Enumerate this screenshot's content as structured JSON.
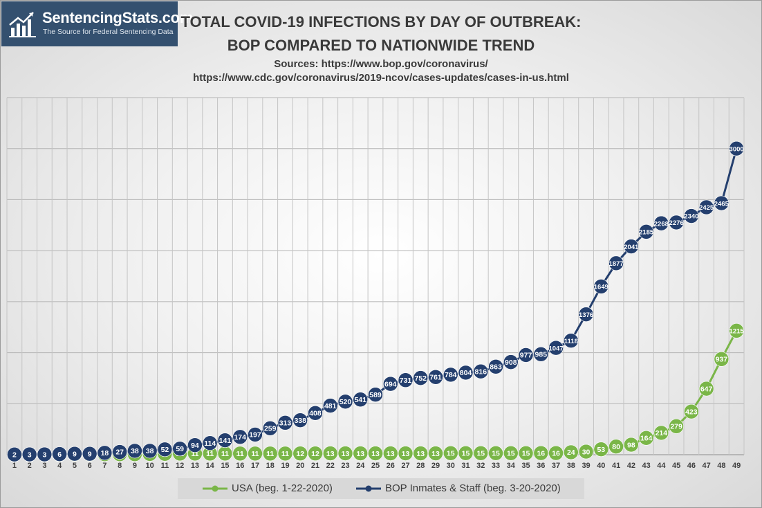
{
  "logo": {
    "name": "SentencingStats.com",
    "tagline": "The Source for Federal Sentencing Data"
  },
  "chart_data": {
    "type": "line",
    "title": "TOTAL COVID-19 INFECTIONS BY DAY OF OUTBREAK:",
    "subtitle": "BOP COMPARED TO NATIONWIDE TREND",
    "sources": [
      "Sources: https://www.bop.gov/coronavirus/",
      "https://www.cdc.gov/coronavirus/2019-ncov/cases-updates/cases-in-us.html"
    ],
    "xlabel": "",
    "ylabel": "",
    "x": [
      1,
      2,
      3,
      4,
      5,
      6,
      7,
      8,
      9,
      10,
      11,
      12,
      13,
      14,
      15,
      16,
      17,
      18,
      19,
      20,
      21,
      22,
      23,
      24,
      25,
      26,
      27,
      28,
      29,
      30,
      31,
      32,
      33,
      34,
      35,
      36,
      37,
      38,
      39,
      40,
      41,
      42,
      43,
      44,
      45,
      46,
      47,
      48,
      49
    ],
    "ylim": [
      0,
      3500
    ],
    "grid": true,
    "legend": "bottom",
    "series": [
      {
        "name": "USA (beg. 1-22-2020)",
        "color": "#7ab648",
        "values": [
          1,
          1,
          2,
          2,
          5,
          5,
          5,
          5,
          5,
          7,
          8,
          11,
          11,
          11,
          11,
          11,
          11,
          11,
          11,
          12,
          12,
          13,
          13,
          13,
          13,
          13,
          13,
          13,
          13,
          15,
          15,
          15,
          15,
          15,
          15,
          16,
          16,
          24,
          30,
          53,
          80,
          98,
          164,
          214,
          279,
          423,
          647,
          937,
          1215
        ]
      },
      {
        "name": "BOP Inmates & Staff (beg. 3-20-2020)",
        "color": "#243f6e",
        "values": [
          2,
          3,
          3,
          6,
          9,
          9,
          18,
          27,
          38,
          38,
          52,
          59,
          94,
          114,
          141,
          174,
          197,
          259,
          313,
          338,
          408,
          481,
          520,
          541,
          589,
          694,
          731,
          752,
          761,
          784,
          804,
          816,
          863,
          908,
          977,
          985,
          1047,
          1118,
          1376,
          1649,
          1877,
          2041,
          2185,
          2268,
          2276,
          2340,
          2425,
          2465,
          3000
        ]
      }
    ]
  }
}
